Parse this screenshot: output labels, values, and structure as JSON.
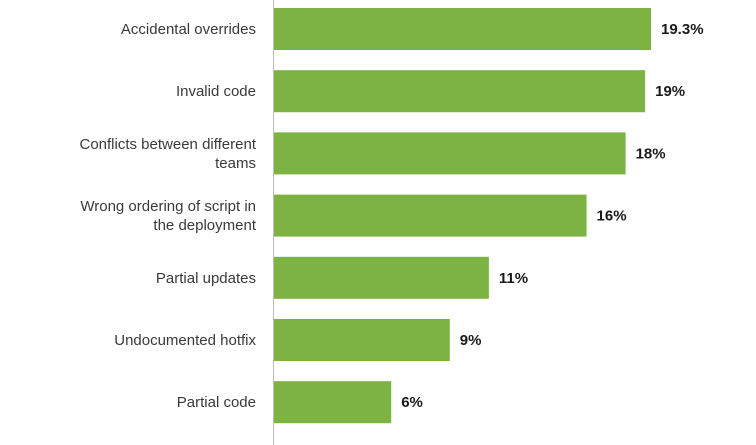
{
  "chart_data": {
    "type": "bar",
    "orientation": "horizontal",
    "categories": [
      "Accidental overrides",
      "Invalid code",
      "Conflicts between different teams",
      "Wrong ordering of script in the deployment",
      "Partial updates",
      "Undocumented hotfix",
      "Partial code"
    ],
    "values": [
      19.3,
      19,
      18,
      16,
      11,
      9,
      6
    ],
    "data_labels": [
      "19.3%",
      "19%",
      "18%",
      "16%",
      "11%",
      "9%",
      "6%"
    ],
    "title": "",
    "xlabel": "",
    "ylabel": "",
    "xlim": [
      0,
      19.3
    ],
    "grid": false,
    "legend": "none",
    "bar_color": "#7cb342",
    "axis_color": "#bfbfbf"
  }
}
